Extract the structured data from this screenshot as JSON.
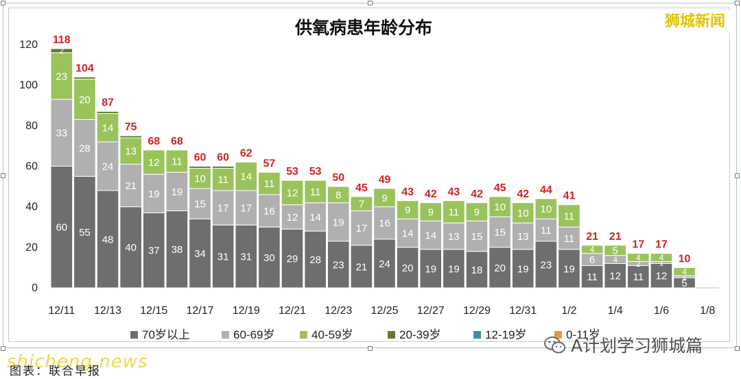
{
  "page": {
    "brand": "狮城新闻",
    "watermark": "shicheng.news",
    "source": "图表：联合早报",
    "wechat_account": "A计划学习狮城篇"
  },
  "chart_data": {
    "type": "bar",
    "stacked": true,
    "title": "供氧病患年龄分布",
    "xlabel": "",
    "ylabel": "",
    "ylim": [
      0,
      120
    ],
    "yticks": [
      0,
      20,
      40,
      60,
      80,
      100,
      120
    ],
    "grid": false,
    "legend_position": "bottom",
    "categories": [
      "12/11",
      "12/12",
      "12/13",
      "12/14",
      "12/15",
      "12/16",
      "12/17",
      "12/18",
      "12/19",
      "12/20",
      "12/21",
      "12/22",
      "12/23",
      "12/24",
      "12/25",
      "12/26",
      "12/27",
      "12/28",
      "12/29",
      "12/30",
      "12/31",
      "1/1",
      "1/2",
      "1/3",
      "1/4",
      "1/5",
      "1/6",
      "1/7",
      "1/8"
    ],
    "tick_labels": [
      "12/11",
      "",
      "12/13",
      "",
      "12/15",
      "",
      "12/17",
      "",
      "12/19",
      "",
      "12/21",
      "",
      "12/23",
      "",
      "12/25",
      "",
      "12/27",
      "",
      "12/29",
      "",
      "12/31",
      "",
      "1/2",
      "",
      "1/4",
      "",
      "1/6",
      "",
      "1/8"
    ],
    "totals": [
      118,
      104,
      87,
      75,
      68,
      68,
      60,
      60,
      62,
      57,
      53,
      53,
      50,
      45,
      49,
      43,
      42,
      43,
      42,
      45,
      42,
      44,
      41,
      21,
      21,
      17,
      17,
      10,
      null
    ],
    "series": [
      {
        "name": "70岁以上",
        "color": "#6e6e6e",
        "label_color": "#ffffff",
        "values": [
          60,
          55,
          48,
          40,
          37,
          38,
          34,
          31,
          31,
          30,
          29,
          28,
          23,
          21,
          24,
          20,
          19,
          19,
          18,
          20,
          19,
          23,
          19,
          11,
          12,
          11,
          12,
          5,
          null
        ]
      },
      {
        "name": "60-69岁",
        "color": "#b0b0b0",
        "label_color": "#ffffff",
        "values": [
          33,
          28,
          24,
          21,
          19,
          19,
          15,
          17,
          17,
          16,
          12,
          14,
          19,
          17,
          16,
          14,
          14,
          13,
          15,
          15,
          13,
          11,
          11,
          6,
          4,
          2,
          1,
          1,
          null
        ]
      },
      {
        "name": "40-59岁",
        "color": "#9ac35c",
        "label_color": "#ffffff",
        "values": [
          23,
          20,
          14,
          13,
          12,
          11,
          10,
          11,
          14,
          11,
          12,
          11,
          8,
          7,
          9,
          9,
          9,
          11,
          9,
          10,
          10,
          10,
          11,
          4,
          5,
          4,
          4,
          4,
          null
        ]
      },
      {
        "name": "20-39岁",
        "color": "#5e7a2f",
        "label_color": "#ffffff",
        "values": [
          2,
          1,
          1,
          1,
          0,
          0,
          1,
          1,
          0,
          0,
          0,
          0,
          0,
          0,
          0,
          0,
          0,
          0,
          0,
          0,
          0,
          0,
          0,
          0,
          0,
          0,
          0,
          0,
          null
        ]
      },
      {
        "name": "12-19岁",
        "color": "#3e8f9a",
        "label_color": "#ffffff",
        "values": [
          0,
          0,
          0,
          0,
          0,
          0,
          0,
          0,
          0,
          0,
          0,
          0,
          0,
          0,
          0,
          0,
          0,
          0,
          0,
          0,
          0,
          0,
          0,
          0,
          0,
          0,
          0,
          0,
          null
        ]
      },
      {
        "name": "0-11岁",
        "color": "#e39a45",
        "label_color": "#ffffff",
        "values": [
          0,
          0,
          0,
          0,
          0,
          0,
          0,
          0,
          0,
          0,
          0,
          0,
          0,
          0,
          0,
          0,
          0,
          0,
          0,
          0,
          0,
          0,
          0,
          0,
          0,
          0,
          0,
          0,
          null
        ]
      }
    ],
    "segment_labels": [
      [
        "60",
        "33",
        "23",
        "2"
      ],
      [
        "55",
        "28",
        "20",
        ""
      ],
      [
        "48",
        "24",
        "14",
        ""
      ],
      [
        "40",
        "21",
        "13",
        ""
      ],
      [
        "37",
        "19",
        "12",
        ""
      ],
      [
        "38",
        "19",
        "11",
        ""
      ],
      [
        "34",
        "15",
        "10",
        ""
      ],
      [
        "31",
        "17",
        "11",
        ""
      ],
      [
        "31",
        "17",
        "14",
        ""
      ],
      [
        "30",
        "16",
        "11",
        ""
      ],
      [
        "29",
        "12",
        "12",
        ""
      ],
      [
        "28",
        "14",
        "11",
        ""
      ],
      [
        "23",
        "19",
        "8",
        ""
      ],
      [
        "21",
        "17",
        "7",
        ""
      ],
      [
        "24",
        "16",
        "9",
        ""
      ],
      [
        "20",
        "14",
        "9",
        ""
      ],
      [
        "19",
        "14",
        "9",
        ""
      ],
      [
        "19",
        "13",
        "11",
        ""
      ],
      [
        "18",
        "15",
        "9",
        ""
      ],
      [
        "20",
        "15",
        "10",
        ""
      ],
      [
        "19",
        "13",
        "10",
        ""
      ],
      [
        "23",
        "11",
        "10",
        ""
      ],
      [
        "19",
        "11",
        "11",
        ""
      ],
      [
        "11",
        "6",
        "4",
        ""
      ],
      [
        "12",
        "4",
        "5",
        ""
      ],
      [
        "11",
        "2",
        "4",
        ""
      ],
      [
        "12",
        "1",
        "4",
        ""
      ],
      [
        "5",
        "1",
        "4",
        ""
      ],
      [
        "",
        "",
        "",
        ""
      ]
    ],
    "total_label_color": "#d42020"
  }
}
